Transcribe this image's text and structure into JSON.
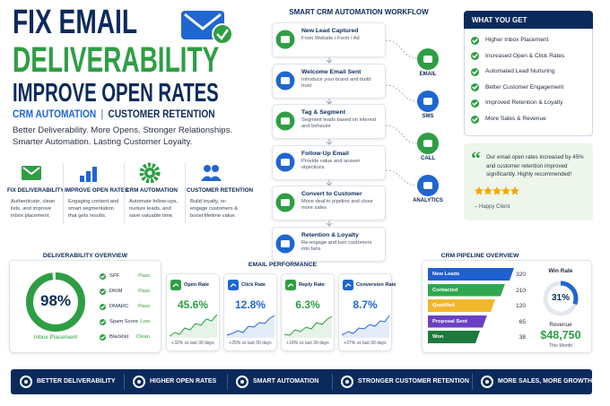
{
  "header": {
    "line1": "FIX EMAIL",
    "line2": "DELIVERABILITY",
    "line3": "IMPROVE OPEN RATES",
    "subtitle_left": "CRM AUTOMATION",
    "subtitle_sep": "|",
    "subtitle_right": "CUSTOMER RETENTION",
    "tagline": "Better Deliverability. More Opens. Stronger Relationships. Smarter Automation. Lasting Customer Loyalty."
  },
  "features": [
    {
      "title": "FIX DELIVERABILITY",
      "text": "Authenticate, clean lists, and improve inbox placement."
    },
    {
      "title": "IMPROVE OPEN RATES",
      "text": "Engaging content and smart segmentation that gets results."
    },
    {
      "title": "CRM AUTOMATION",
      "text": "Automate follow-ups, nurture leads, and save valuable time."
    },
    {
      "title": "CUSTOMER RETENTION",
      "text": "Build loyalty, re-engage customers & boost lifetime value."
    }
  ],
  "workflow": {
    "title": "SMART CRM AUTOMATION WORKFLOW",
    "steps": [
      {
        "title": "New Lead Captured",
        "text": "From Website / Form / Ad"
      },
      {
        "title": "Welcome Email Sent",
        "text": "Introduce your brand and build trust"
      },
      {
        "title": "Tag & Segment",
        "text": "Segment leads based on interest and behavior"
      },
      {
        "title": "Follow-Up Email",
        "text": "Provide value and answer objections"
      },
      {
        "title": "Convert to Customer",
        "text": "Move deal to pipeline and close more sales"
      },
      {
        "title": "Retention & Loyalty",
        "text": "Re-engage and turn customers into fans"
      }
    ],
    "channels": [
      "EMAIL",
      "SMS",
      "CALL",
      "ANALYTICS"
    ]
  },
  "benefits": {
    "title": "WHAT YOU GET",
    "items": [
      "Higher Inbox Placement",
      "Increased Open & Click Rates",
      "Automated Lead Nurturing",
      "Better Customer Engagement",
      "Improved Retention & Loyalty",
      "More Sales & Revenue"
    ]
  },
  "testimonial": {
    "quote": "Our email open rates increased by 45% and customer retention improved significantly. Highly recommended!",
    "author": "– Happy Client"
  },
  "deliverability": {
    "title": "DELIVERABILITY OVERVIEW",
    "inbox": {
      "value": 98,
      "label": "98%"
    },
    "inbox_label": "Inbox Placement",
    "checks": [
      {
        "name": "SPF",
        "status": "Pass"
      },
      {
        "name": "DKIM",
        "status": "Pass"
      },
      {
        "name": "DMARC",
        "status": "Pass"
      },
      {
        "name": "Spam Score",
        "status": "Low"
      },
      {
        "name": "Blacklist",
        "status": "Clean"
      }
    ]
  },
  "performance": {
    "title": "EMAIL PERFORMANCE",
    "metrics": [
      {
        "name": "Open Rate",
        "value": "45.6%",
        "change": "+32% vs last 30 days"
      },
      {
        "name": "Click Rate",
        "value": "12.8%",
        "change": "+25% vs last 30 days"
      },
      {
        "name": "Reply Rate",
        "value": "6.3%",
        "change": "+18% vs last 30 days"
      },
      {
        "name": "Conversion Rate",
        "value": "8.7%",
        "change": "+27% vs last 30 days"
      }
    ]
  },
  "pipeline": {
    "title": "CRM PIPELINE OVERVIEW",
    "stages": [
      {
        "name": "New Leads",
        "count": 320
      },
      {
        "name": "Contacted",
        "count": 210
      },
      {
        "name": "Qualified",
        "count": 120
      },
      {
        "name": "Proposal Sent",
        "count": 65
      },
      {
        "name": "Won",
        "count": 38
      }
    ],
    "win_rate_label": "Win Rate",
    "win_rate": {
      "value": 31,
      "label": "31%"
    },
    "revenue_label": "Revenue",
    "revenue": "$48,750",
    "revenue_period": "This Month"
  },
  "footer": [
    "BETTER DELIVERABILITY",
    "HIGHER OPEN RATES",
    "SMART AUTOMATION",
    "STRONGER CUSTOMER RETENTION",
    "MORE SALES, MORE GROWTH"
  ]
}
